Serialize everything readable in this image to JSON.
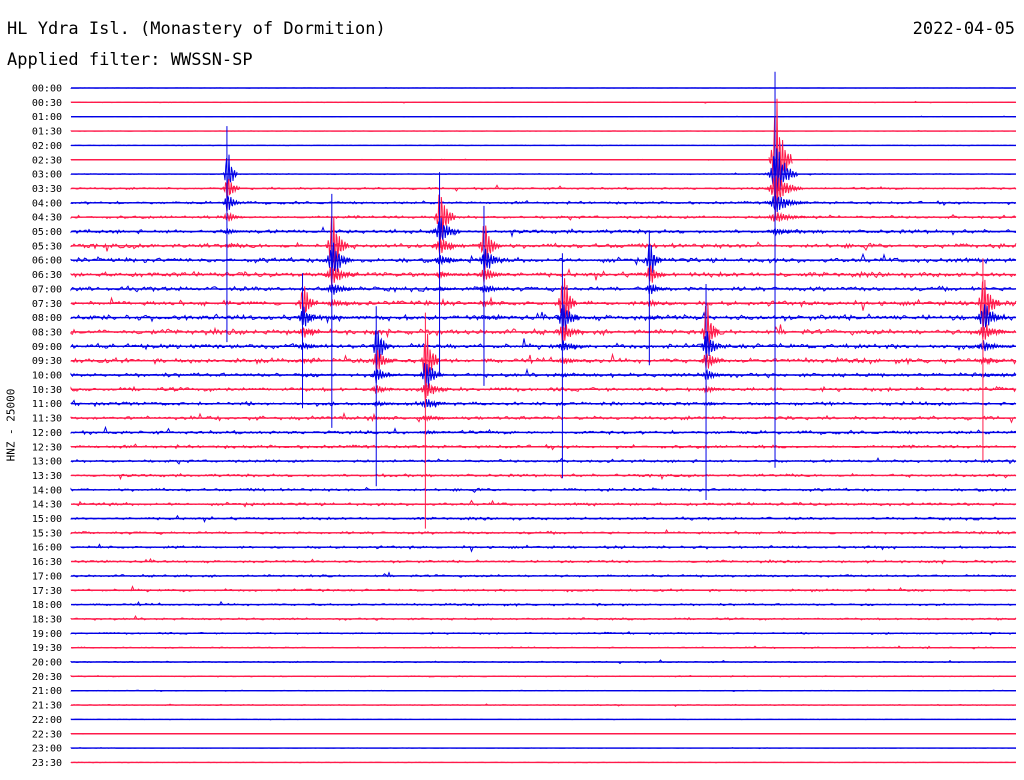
{
  "header": {
    "title": "HL Ydra Isl. (Monastery of Dormition)",
    "date": "2022-04-05",
    "filter": "Applied filter: WWSSN-SP"
  },
  "colors": {
    "blue": "#0000e6",
    "red": "#ff1a4a"
  },
  "chart_data": {
    "type": "line",
    "title": "HL Ydra Isl. (Monastery of Dormition)",
    "subtitle": "Applied filter: WWSSN-SP",
    "ylabel": "HNZ - 25000",
    "grid": false,
    "trace_colors": [
      "blue",
      "red"
    ],
    "rows": [
      "00:00",
      "00:30",
      "01:00",
      "01:30",
      "02:00",
      "02:30",
      "03:00",
      "03:30",
      "04:00",
      "04:30",
      "05:00",
      "05:30",
      "06:00",
      "06:30",
      "07:00",
      "07:30",
      "08:00",
      "08:30",
      "09:00",
      "09:30",
      "10:00",
      "10:30",
      "11:00",
      "11:30",
      "12:00",
      "12:30",
      "13:00",
      "13:30",
      "14:00",
      "14:30",
      "15:00",
      "15:30",
      "16:00",
      "16:30",
      "17:00",
      "17:30",
      "18:00",
      "18:30",
      "19:00",
      "19:30",
      "20:00",
      "20:30",
      "21:00",
      "21:30",
      "22:00",
      "22:30",
      "23:00",
      "23:30"
    ],
    "noise_level": [
      0.2,
      0.4,
      0.3,
      0.3,
      0.4,
      0.5,
      0.7,
      1.6,
      2.0,
      2.2,
      3.0,
      3.6,
      3.6,
      3.6,
      3.4,
      3.6,
      4.2,
      4.0,
      3.8,
      3.6,
      3.0,
      3.0,
      2.8,
      2.8,
      2.6,
      2.4,
      2.2,
      2.2,
      2.2,
      2.2,
      2.0,
      2.0,
      2.0,
      1.9,
      1.8,
      1.8,
      1.6,
      1.6,
      1.3,
      1.0,
      1.0,
      0.8,
      0.6,
      0.8,
      0.3,
      0.3,
      0.3,
      0.3
    ],
    "events": [
      {
        "time_min": 165,
        "row": "03:00",
        "amp": 48,
        "len_min": 7,
        "color": "blue"
      },
      {
        "time_min": 245,
        "row": "07:30",
        "amp": 30,
        "len_min": 10,
        "color": "blue"
      },
      {
        "time_min": 276,
        "row": "05:30",
        "amp": 52,
        "len_min": 12,
        "color": "blue"
      },
      {
        "time_min": 323,
        "row": "09:00",
        "amp": 40,
        "len_min": 9,
        "color": "blue"
      },
      {
        "time_min": 375,
        "row": "09:30",
        "amp": 48,
        "len_min": 10,
        "color": "red"
      },
      {
        "time_min": 390,
        "row": "04:30",
        "amp": 45,
        "len_min": 11,
        "color": "blue"
      },
      {
        "time_min": 437,
        "row": "05:30",
        "amp": 40,
        "len_min": 11,
        "color": "blue"
      },
      {
        "time_min": 520,
        "row": "07:30",
        "amp": 50,
        "len_min": 10,
        "color": "blue"
      },
      {
        "time_min": 612,
        "row": "06:00",
        "amp": 30,
        "len_min": 9,
        "color": "blue"
      },
      {
        "time_min": 672,
        "row": "08:30",
        "amp": 48,
        "len_min": 9,
        "color": "blue"
      },
      {
        "time_min": 745,
        "row": "02:30",
        "amp": 88,
        "len_min": 12,
        "color": "blue"
      },
      {
        "time_min": 965,
        "row": "07:30",
        "amp": 45,
        "len_min": 12,
        "color": "red"
      }
    ]
  }
}
